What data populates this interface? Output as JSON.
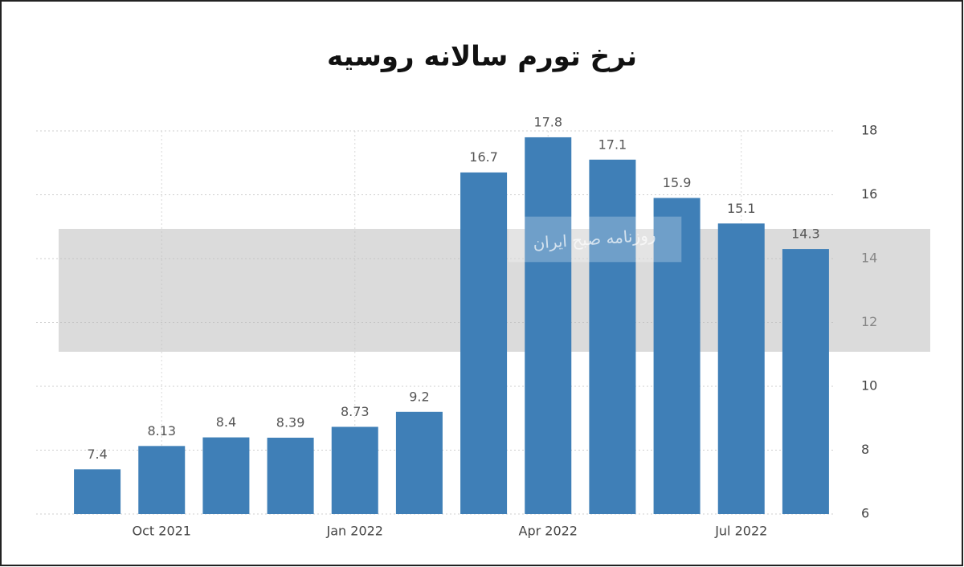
{
  "chart_data": {
    "type": "bar",
    "title": "نرخ تورم سالانه روسیه",
    "watermark": "روزنامه صبح ایران",
    "categories": [
      null,
      "Oct 2021",
      null,
      null,
      "Jan 2022",
      null,
      null,
      "Apr 2022",
      null,
      null,
      "Jul 2022",
      null
    ],
    "values": [
      7.4,
      8.13,
      8.4,
      8.39,
      8.73,
      9.2,
      16.7,
      17.8,
      17.1,
      15.9,
      15.1,
      14.3
    ],
    "color": "#3f7fb7",
    "ylim": [
      6,
      18
    ],
    "yticks": [
      6,
      8,
      10,
      12,
      14,
      16,
      18
    ],
    "grid": true
  }
}
